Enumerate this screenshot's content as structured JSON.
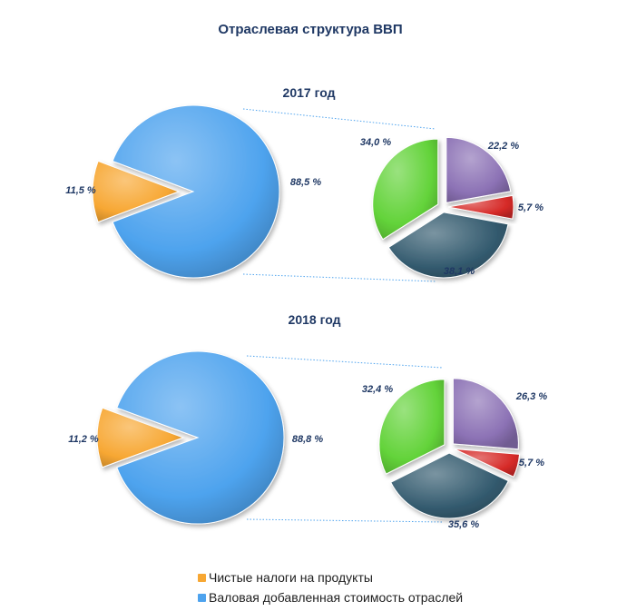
{
  "title": "Отраслевая структура ВВП",
  "colors": {
    "taxes": "#f7a733",
    "gva": "#4ea3ee",
    "green": "#63d33a",
    "purple": "#8c72b5",
    "red": "#d62a28",
    "slate": "#335a6e",
    "text": "#1f3864"
  },
  "chart_data": [
    {
      "type": "pie",
      "title": "2017 год",
      "main": {
        "slices": [
          {
            "name": "Чистые налоги на продукты",
            "value": 11.5,
            "label": "11,5 %",
            "color": "taxes"
          },
          {
            "name": "Валовая добавленная стоимость отраслей",
            "value": 88.5,
            "label": "88,5 %",
            "color": "gva"
          }
        ]
      },
      "breakdown": {
        "slices": [
          {
            "value": 22.2,
            "label": "22,2 %",
            "color": "purple"
          },
          {
            "value": 5.7,
            "label": "5,7 %",
            "color": "red"
          },
          {
            "value": 38.1,
            "label": "38,1 %",
            "color": "slate"
          },
          {
            "value": 34.0,
            "label": "34,0 %",
            "color": "green"
          }
        ]
      }
    },
    {
      "type": "pie",
      "title": "2018 год",
      "main": {
        "slices": [
          {
            "name": "Чистые налоги на продукты",
            "value": 11.2,
            "label": "11,2 %",
            "color": "taxes"
          },
          {
            "name": "Валовая добавленная стоимость отраслей",
            "value": 88.8,
            "label": "88,8 %",
            "color": "gva"
          }
        ]
      },
      "breakdown": {
        "slices": [
          {
            "value": 26.3,
            "label": "26,3 %",
            "color": "purple"
          },
          {
            "value": 5.7,
            "label": "5,7 %",
            "color": "red"
          },
          {
            "value": 35.6,
            "label": "35,6 %",
            "color": "slate"
          },
          {
            "value": 32.4,
            "label": "32,4 %",
            "color": "green"
          }
        ]
      }
    }
  ],
  "legend": [
    {
      "label": "Чистые налоги на продукты",
      "color": "taxes"
    },
    {
      "label": "Валовая добавленная стоимость отраслей",
      "color": "gva"
    }
  ]
}
